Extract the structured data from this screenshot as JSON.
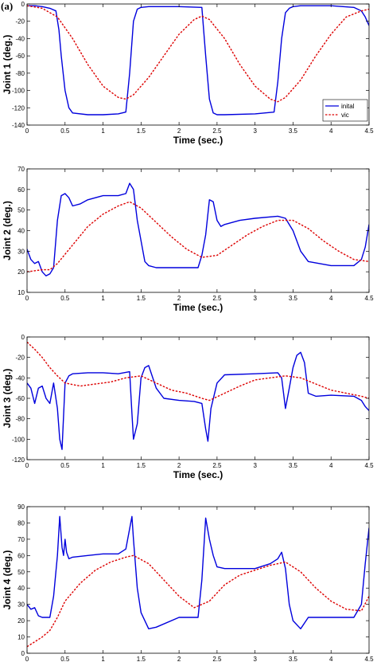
{
  "panel_label": "(a)",
  "chart_data": [
    {
      "type": "line",
      "xlabel": "Time (sec.)",
      "ylabel": "Joint 1 (deg.)",
      "xlim": [
        0,
        4.5
      ],
      "ylim": [
        -140,
        0
      ],
      "xticks": [
        0,
        0.5,
        1,
        1.5,
        2,
        2.5,
        3,
        3.5,
        4,
        4.5
      ],
      "yticks": [
        -140,
        -120,
        -100,
        -80,
        -60,
        -40,
        -20,
        0
      ],
      "legend": {
        "position": "right-lower",
        "entries": [
          "inital",
          "vic"
        ]
      },
      "series": [
        {
          "name": "inital",
          "color": "#0000dd",
          "style": "solid",
          "x": [
            0,
            0.1,
            0.2,
            0.3,
            0.38,
            0.42,
            0.45,
            0.5,
            0.55,
            0.6,
            0.8,
            1.0,
            1.2,
            1.3,
            1.35,
            1.4,
            1.45,
            1.5,
            1.6,
            2.0,
            2.3,
            2.35,
            2.4,
            2.45,
            2.5,
            2.6,
            3.0,
            3.25,
            3.3,
            3.35,
            3.4,
            3.45,
            3.5,
            3.6,
            4.0,
            4.3,
            4.4,
            4.45,
            4.5
          ],
          "y": [
            -2,
            -2,
            -3,
            -5,
            -8,
            -30,
            -60,
            -100,
            -120,
            -126,
            -128,
            -128,
            -127,
            -125,
            -80,
            -20,
            -6,
            -4,
            -3,
            -3,
            -4,
            -60,
            -110,
            -126,
            -128,
            -128,
            -127,
            -125,
            -90,
            -40,
            -10,
            -5,
            -3,
            -2,
            -2,
            -4,
            -8,
            -15,
            -25
          ]
        },
        {
          "name": "vic",
          "color": "#dd0000",
          "style": "dashed",
          "x": [
            0,
            0.2,
            0.4,
            0.6,
            0.8,
            1.0,
            1.2,
            1.3,
            1.4,
            1.6,
            1.8,
            2.0,
            2.2,
            2.3,
            2.4,
            2.6,
            2.8,
            3.0,
            3.2,
            3.3,
            3.4,
            3.6,
            3.8,
            4.0,
            4.2,
            4.4,
            4.5
          ],
          "y": [
            -2,
            -5,
            -15,
            -40,
            -70,
            -95,
            -108,
            -110,
            -105,
            -85,
            -60,
            -35,
            -18,
            -14,
            -18,
            -40,
            -70,
            -95,
            -110,
            -113,
            -108,
            -88,
            -60,
            -35,
            -15,
            -8,
            -6
          ]
        }
      ]
    },
    {
      "type": "line",
      "xlabel": "Time (sec.)",
      "ylabel": "Joint 2 (deg.)",
      "xlim": [
        0,
        4.5
      ],
      "ylim": [
        10,
        70
      ],
      "xticks": [
        0,
        0.5,
        1,
        1.5,
        2,
        2.5,
        3,
        3.5,
        4,
        4.5
      ],
      "yticks": [
        10,
        20,
        30,
        40,
        50,
        60,
        70
      ],
      "series": [
        {
          "name": "inital",
          "color": "#0000dd",
          "style": "solid",
          "x": [
            0,
            0.05,
            0.1,
            0.15,
            0.2,
            0.25,
            0.3,
            0.35,
            0.4,
            0.45,
            0.5,
            0.55,
            0.6,
            0.7,
            0.8,
            1.0,
            1.2,
            1.3,
            1.35,
            1.4,
            1.45,
            1.55,
            1.6,
            1.7,
            2.0,
            2.25,
            2.3,
            2.35,
            2.4,
            2.45,
            2.5,
            2.55,
            2.6,
            2.8,
            3.0,
            3.3,
            3.4,
            3.5,
            3.6,
            3.7,
            4.0,
            4.3,
            4.4,
            4.45,
            4.5
          ],
          "y": [
            31,
            26,
            24,
            25,
            20,
            18,
            19,
            22,
            45,
            57,
            58,
            56,
            52,
            53,
            55,
            57,
            57,
            58,
            63,
            60,
            45,
            25,
            23,
            22,
            22,
            22,
            28,
            38,
            55,
            54,
            45,
            42,
            43,
            45,
            46,
            47,
            46,
            40,
            30,
            25,
            23,
            23,
            26,
            32,
            43
          ]
        },
        {
          "name": "vic",
          "color": "#dd0000",
          "style": "dashed",
          "x": [
            0,
            0.2,
            0.3,
            0.4,
            0.6,
            0.8,
            1.0,
            1.2,
            1.35,
            1.5,
            1.7,
            1.9,
            2.1,
            2.3,
            2.5,
            2.7,
            2.9,
            3.1,
            3.3,
            3.5,
            3.7,
            3.9,
            4.1,
            4.3,
            4.5
          ],
          "y": [
            20,
            21,
            21,
            24,
            33,
            42,
            48,
            52,
            54,
            51,
            44,
            37,
            31,
            27,
            28,
            33,
            38,
            42,
            45,
            45,
            41,
            35,
            30,
            26,
            25
          ]
        }
      ]
    },
    {
      "type": "line",
      "xlabel": "Time (sec.)",
      "ylabel": "Joint 3 (deg.)",
      "xlim": [
        0,
        4.5
      ],
      "ylim": [
        -120,
        0
      ],
      "xticks": [
        0,
        0.5,
        1,
        1.5,
        2,
        2.5,
        3,
        3.5,
        4,
        4.5
      ],
      "yticks": [
        -120,
        -100,
        -80,
        -60,
        -40,
        -20,
        0
      ],
      "series": [
        {
          "name": "inital",
          "color": "#0000dd",
          "style": "solid",
          "x": [
            0,
            0.05,
            0.1,
            0.15,
            0.2,
            0.25,
            0.3,
            0.35,
            0.4,
            0.43,
            0.46,
            0.5,
            0.55,
            0.6,
            0.8,
            1.0,
            1.2,
            1.35,
            1.38,
            1.4,
            1.45,
            1.5,
            1.55,
            1.6,
            1.7,
            1.8,
            2.0,
            2.2,
            2.3,
            2.35,
            2.38,
            2.42,
            2.5,
            2.6,
            3.0,
            3.3,
            3.35,
            3.4,
            3.45,
            3.5,
            3.55,
            3.6,
            3.65,
            3.7,
            3.8,
            4.0,
            4.3,
            4.4,
            4.45,
            4.5
          ],
          "y": [
            -45,
            -50,
            -65,
            -50,
            -48,
            -60,
            -65,
            -45,
            -70,
            -100,
            -110,
            -45,
            -38,
            -36,
            -35,
            -35,
            -36,
            -34,
            -75,
            -100,
            -85,
            -40,
            -30,
            -28,
            -50,
            -60,
            -62,
            -63,
            -65,
            -90,
            -102,
            -70,
            -45,
            -37,
            -36,
            -35,
            -40,
            -70,
            -50,
            -30,
            -18,
            -15,
            -25,
            -55,
            -58,
            -57,
            -58,
            -62,
            -68,
            -72
          ]
        },
        {
          "name": "vic",
          "color": "#dd0000",
          "style": "dashed",
          "x": [
            0,
            0.1,
            0.2,
            0.3,
            0.4,
            0.5,
            0.7,
            0.9,
            1.1,
            1.3,
            1.5,
            1.7,
            1.9,
            2.1,
            2.3,
            2.4,
            2.6,
            2.8,
            3.0,
            3.2,
            3.4,
            3.6,
            3.8,
            4.0,
            4.2,
            4.4,
            4.5
          ],
          "y": [
            -5,
            -12,
            -20,
            -30,
            -38,
            -45,
            -48,
            -46,
            -44,
            -40,
            -38,
            -45,
            -52,
            -55,
            -60,
            -62,
            -55,
            -48,
            -42,
            -40,
            -38,
            -40,
            -46,
            -52,
            -55,
            -58,
            -60
          ]
        }
      ]
    },
    {
      "type": "line",
      "xlabel": "Time (sec.)",
      "ylabel": "Joint 4 (deg.)",
      "xlim": [
        0,
        4.5
      ],
      "ylim": [
        0,
        90
      ],
      "xticks": [
        0,
        0.5,
        1,
        1.5,
        2,
        2.5,
        3,
        3.5,
        4,
        4.5
      ],
      "yticks": [
        0,
        10,
        20,
        30,
        40,
        50,
        60,
        70,
        80,
        90
      ],
      "series": [
        {
          "name": "inital",
          "color": "#0000dd",
          "style": "solid",
          "x": [
            0,
            0.05,
            0.1,
            0.15,
            0.2,
            0.3,
            0.35,
            0.4,
            0.43,
            0.46,
            0.48,
            0.5,
            0.52,
            0.55,
            0.6,
            0.8,
            1.0,
            1.2,
            1.3,
            1.38,
            1.4,
            1.45,
            1.5,
            1.6,
            1.7,
            2.0,
            2.25,
            2.3,
            2.35,
            2.4,
            2.45,
            2.5,
            2.6,
            3.0,
            3.2,
            3.3,
            3.35,
            3.4,
            3.45,
            3.5,
            3.6,
            3.7,
            4.0,
            4.3,
            4.4,
            4.45,
            4.5
          ],
          "y": [
            30,
            27,
            28,
            23,
            22,
            22,
            35,
            60,
            84,
            65,
            60,
            70,
            62,
            58,
            59,
            60,
            61,
            61,
            64,
            84,
            70,
            40,
            25,
            15,
            16,
            22,
            22,
            45,
            83,
            70,
            60,
            53,
            52,
            52,
            55,
            58,
            62,
            52,
            30,
            20,
            15,
            22,
            22,
            22,
            30,
            55,
            77
          ]
        },
        {
          "name": "vic",
          "color": "#dd0000",
          "style": "dashed",
          "x": [
            0,
            0.1,
            0.2,
            0.3,
            0.4,
            0.5,
            0.7,
            0.9,
            1.1,
            1.3,
            1.4,
            1.6,
            1.8,
            2.0,
            2.2,
            2.4,
            2.6,
            2.8,
            3.0,
            3.2,
            3.4,
            3.6,
            3.8,
            4.0,
            4.2,
            4.4,
            4.5
          ],
          "y": [
            4,
            7,
            10,
            14,
            22,
            32,
            43,
            51,
            56,
            59,
            60,
            55,
            45,
            35,
            28,
            32,
            42,
            48,
            51,
            54,
            56,
            50,
            40,
            32,
            27,
            26,
            35
          ]
        }
      ]
    }
  ]
}
